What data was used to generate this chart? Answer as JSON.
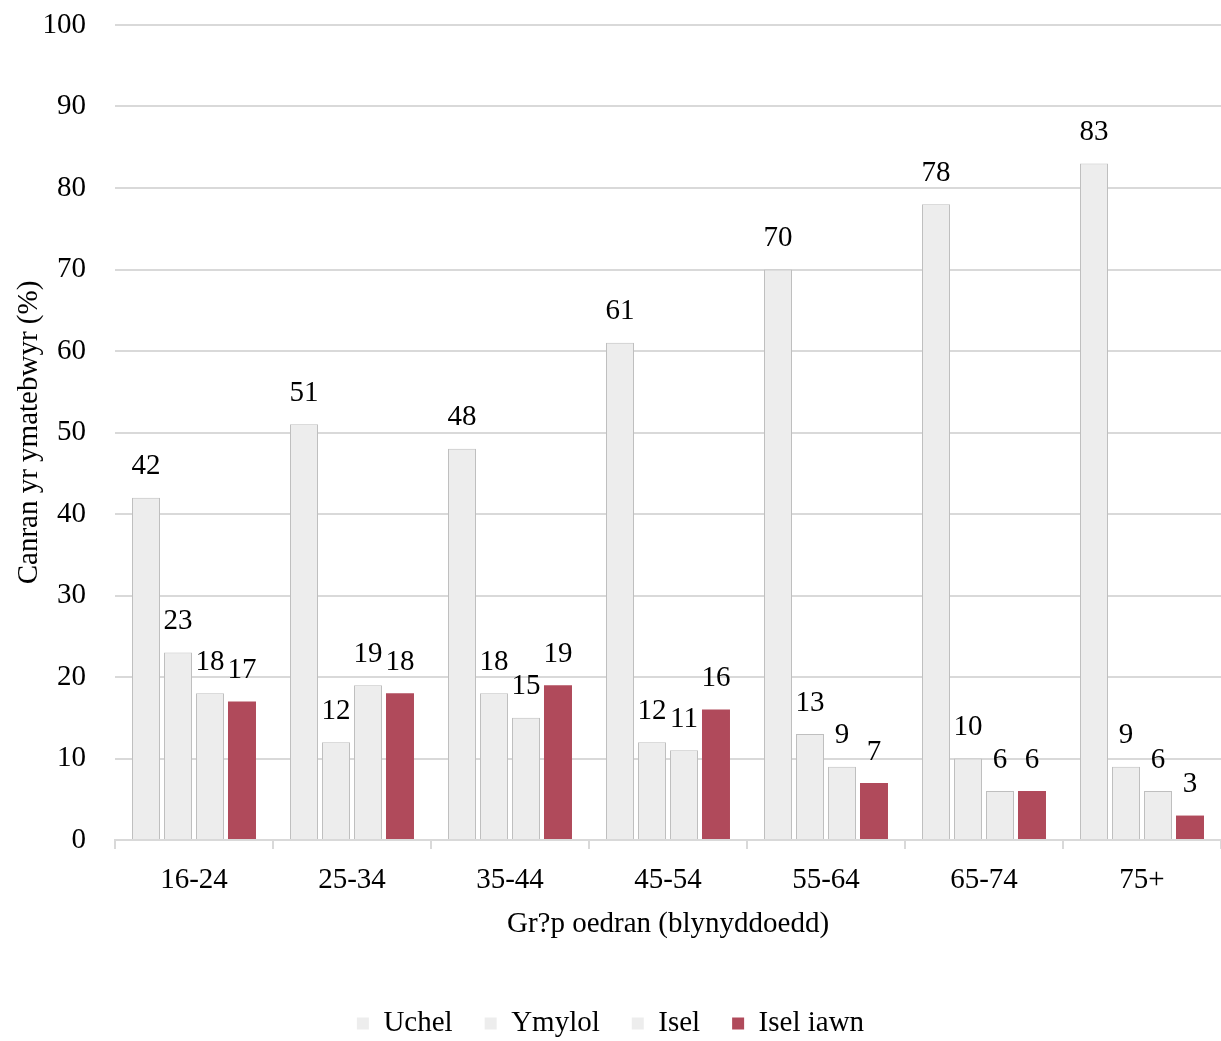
{
  "chart_data": {
    "type": "bar",
    "xlabel": "Gr?p oedran (blynyddoedd)",
    "ylabel": "Canran yr ymatebwyr (%)",
    "categories": [
      "16-24",
      "25-34",
      "35-44",
      "45-54",
      "55-64",
      "65-74",
      "75+"
    ],
    "series": [
      {
        "name": "Uchel",
        "color": "#ededed",
        "values": [
          42,
          51,
          48,
          61,
          70,
          78,
          83
        ]
      },
      {
        "name": "Ymylol",
        "color": "#ededed",
        "values": [
          23,
          12,
          18,
          12,
          13,
          10,
          9
        ]
      },
      {
        "name": "Isel",
        "color": "#ededed",
        "values": [
          18,
          19,
          15,
          11,
          9,
          6,
          6
        ]
      },
      {
        "name": "Isel iawn",
        "color": "#b04a5b",
        "values": [
          17,
          18,
          19,
          16,
          7,
          6,
          3
        ]
      }
    ],
    "ylim": [
      0,
      100
    ],
    "yticks": [
      0,
      10,
      20,
      30,
      40,
      50,
      60,
      70,
      80,
      90,
      100
    ],
    "grid": "y",
    "legend": "bottom",
    "data_labels": true
  }
}
